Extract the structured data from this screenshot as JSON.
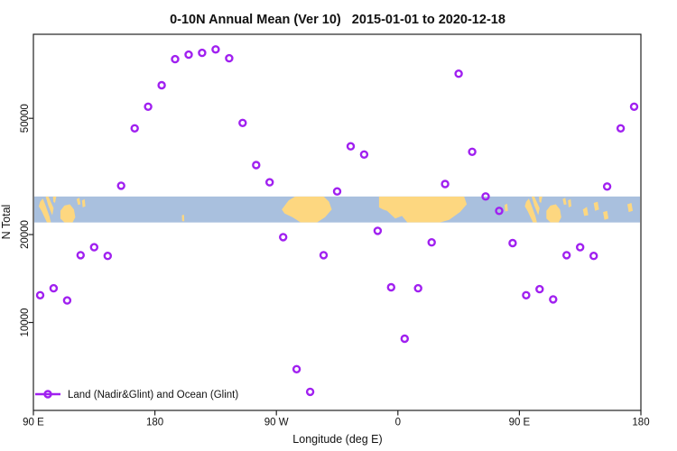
{
  "chart": {
    "title": "0-10N Annual Mean (Ver 10)   2015-01-01 to 2020-12-18",
    "xlabel": "Longitude (deg E)",
    "ylabel": "N Total",
    "legend_label": "Land (Nadir&Glint) and Ocean (Glint)"
  },
  "colors": {
    "marker": "#a020f0",
    "ocean": "#a9c0de",
    "land": "#fdd780",
    "axis": "#222222",
    "text": "#111111"
  },
  "chart_data": {
    "type": "scatter",
    "title": "0-10N Annual Mean (Ver 10)   2015-01-01 to 2020-12-18",
    "xlabel": "Longitude (deg E)",
    "ylabel": "N Total",
    "legend": [
      "Land (Nadir&Glint) and Ocean (Glint)"
    ],
    "legend_position": "bottom-left",
    "grid": false,
    "x_axis": {
      "range": [
        90,
        540
      ],
      "ticks": [
        90,
        180,
        270,
        360,
        450,
        540
      ],
      "tick_labels": [
        "90 E",
        "180",
        "90 W",
        "0",
        "90 E",
        "180"
      ],
      "note": "longitude wraps around the globe: 90E to 180 to 90W to 0 to 90E to 180"
    },
    "y_axis": {
      "scale": "log",
      "range": [
        5000,
        97000
      ],
      "ticks": [
        10000,
        20000,
        50000
      ],
      "tick_labels": [
        "10000",
        "20000",
        "50000"
      ]
    },
    "series": [
      {
        "name": "Land (Nadir&Glint) and Ocean (Glint)",
        "marker": "open-circle",
        "x_deg_east_unwrapped": [
          95,
          105,
          115,
          125,
          135,
          145,
          155,
          165,
          175,
          185,
          195,
          205,
          215,
          225,
          235,
          245,
          255,
          265,
          275,
          285,
          295,
          305,
          315,
          325,
          335,
          345,
          355,
          365,
          375,
          385,
          395,
          405,
          415,
          425,
          435,
          445,
          455,
          465,
          475,
          485,
          495,
          505,
          515,
          525,
          535
        ],
        "values": [
          12400,
          13100,
          11900,
          17000,
          18100,
          16900,
          29400,
          46200,
          54800,
          64900,
          79700,
          82600,
          83800,
          86100,
          80300,
          48200,
          34600,
          30200,
          19600,
          6920,
          5790,
          17000,
          28100,
          40100,
          37600,
          20600,
          13200,
          8800,
          13100,
          18800,
          29800,
          71100,
          38400,
          27000,
          24100,
          18700,
          12400,
          13000,
          12000,
          17000,
          18100,
          16900,
          29200,
          46200,
          54800
        ]
      }
    ],
    "map_band": {
      "description": "0-10N latitude world-map strip drawn across the plot",
      "value_range": [
        22000,
        27000
      ],
      "land_segments": [
        [
          [
            95,
            0.2
          ],
          [
            97,
            0.08
          ],
          [
            99,
            0.35
          ],
          [
            102,
            0.78
          ],
          [
            103,
            1
          ],
          [
            100,
            1
          ],
          [
            96,
            0.55
          ],
          [
            94,
            0.38
          ]
        ],
        [
          [
            99,
            0
          ],
          [
            101,
            0
          ],
          [
            105,
            0.45
          ],
          [
            104,
            0.72
          ],
          [
            101,
            0.35
          ]
        ],
        [
          [
            104.5,
            0
          ],
          [
            107,
            0
          ],
          [
            106,
            0.25
          ],
          [
            104.8,
            0.2
          ]
        ],
        [
          [
            110,
            0.55
          ],
          [
            113,
            0.35
          ],
          [
            117,
            0.3
          ],
          [
            120,
            0.5
          ],
          [
            121,
            0.8
          ],
          [
            119,
            1
          ],
          [
            113,
            1
          ],
          [
            110,
            0.85
          ]
        ],
        [
          [
            122,
            0.1
          ],
          [
            124,
            0.05
          ],
          [
            125,
            0.3
          ],
          [
            123,
            0.32
          ]
        ],
        [
          [
            126,
            0.15
          ],
          [
            128,
            0.1
          ],
          [
            128.5,
            0.38
          ],
          [
            126.5,
            0.42
          ]
        ],
        [
          [
            200,
            0.72
          ],
          [
            201.5,
            0.7
          ],
          [
            201.8,
            0.95
          ],
          [
            200.2,
            0.95
          ]
        ],
        [
          [
            274,
            0.5
          ],
          [
            279,
            0.15
          ],
          [
            284,
            0
          ],
          [
            305,
            0
          ],
          [
            309,
            0.2
          ],
          [
            311,
            0.5
          ],
          [
            306,
            0.8
          ],
          [
            300,
            1
          ],
          [
            288,
            1
          ],
          [
            282,
            0.8
          ],
          [
            276,
            0.65
          ]
        ],
        [
          [
            346,
            0.42
          ],
          [
            346,
            0
          ],
          [
            409,
            0
          ],
          [
            411,
            0.3
          ],
          [
            406,
            0.6
          ],
          [
            398,
            0.9
          ],
          [
            391,
            1
          ],
          [
            367,
            1
          ],
          [
            363,
            0.75
          ],
          [
            358,
            0.85
          ],
          [
            352,
            0.55
          ],
          [
            349,
            0.5
          ]
        ],
        [
          [
            439,
            0.32
          ],
          [
            441,
            0.28
          ],
          [
            441.5,
            0.55
          ],
          [
            439.5,
            0.58
          ]
        ],
        [
          [
            455,
            0.2
          ],
          [
            457,
            0.08
          ],
          [
            459,
            0.35
          ],
          [
            462,
            0.78
          ],
          [
            463,
            1
          ],
          [
            460,
            1
          ],
          [
            456,
            0.55
          ],
          [
            454,
            0.38
          ]
        ],
        [
          [
            459,
            0
          ],
          [
            461,
            0
          ],
          [
            465,
            0.45
          ],
          [
            464,
            0.72
          ],
          [
            461,
            0.35
          ]
        ],
        [
          [
            464.5,
            0
          ],
          [
            467,
            0
          ],
          [
            466,
            0.25
          ],
          [
            464.8,
            0.2
          ]
        ],
        [
          [
            470,
            0.55
          ],
          [
            473,
            0.35
          ],
          [
            477,
            0.3
          ],
          [
            480,
            0.5
          ],
          [
            481,
            0.8
          ],
          [
            479,
            1
          ],
          [
            473,
            1
          ],
          [
            470,
            0.85
          ]
        ],
        [
          [
            482,
            0.1
          ],
          [
            484,
            0.05
          ],
          [
            485,
            0.3
          ],
          [
            483,
            0.32
          ]
        ],
        [
          [
            486,
            0.15
          ],
          [
            488,
            0.1
          ],
          [
            488.5,
            0.38
          ],
          [
            486.5,
            0.42
          ]
        ],
        [
          [
            497,
            0.5
          ],
          [
            500,
            0.4
          ],
          [
            501,
            0.72
          ],
          [
            498,
            0.75
          ]
        ],
        [
          [
            505,
            0.25
          ],
          [
            508,
            0.2
          ],
          [
            509,
            0.5
          ],
          [
            506,
            0.55
          ]
        ],
        [
          [
            512,
            0.6
          ],
          [
            515,
            0.55
          ],
          [
            516,
            0.85
          ],
          [
            513,
            0.9
          ]
        ],
        [
          [
            530,
            0.3
          ],
          [
            533,
            0.25
          ],
          [
            534,
            0.55
          ],
          [
            531,
            0.6
          ]
        ]
      ]
    }
  }
}
